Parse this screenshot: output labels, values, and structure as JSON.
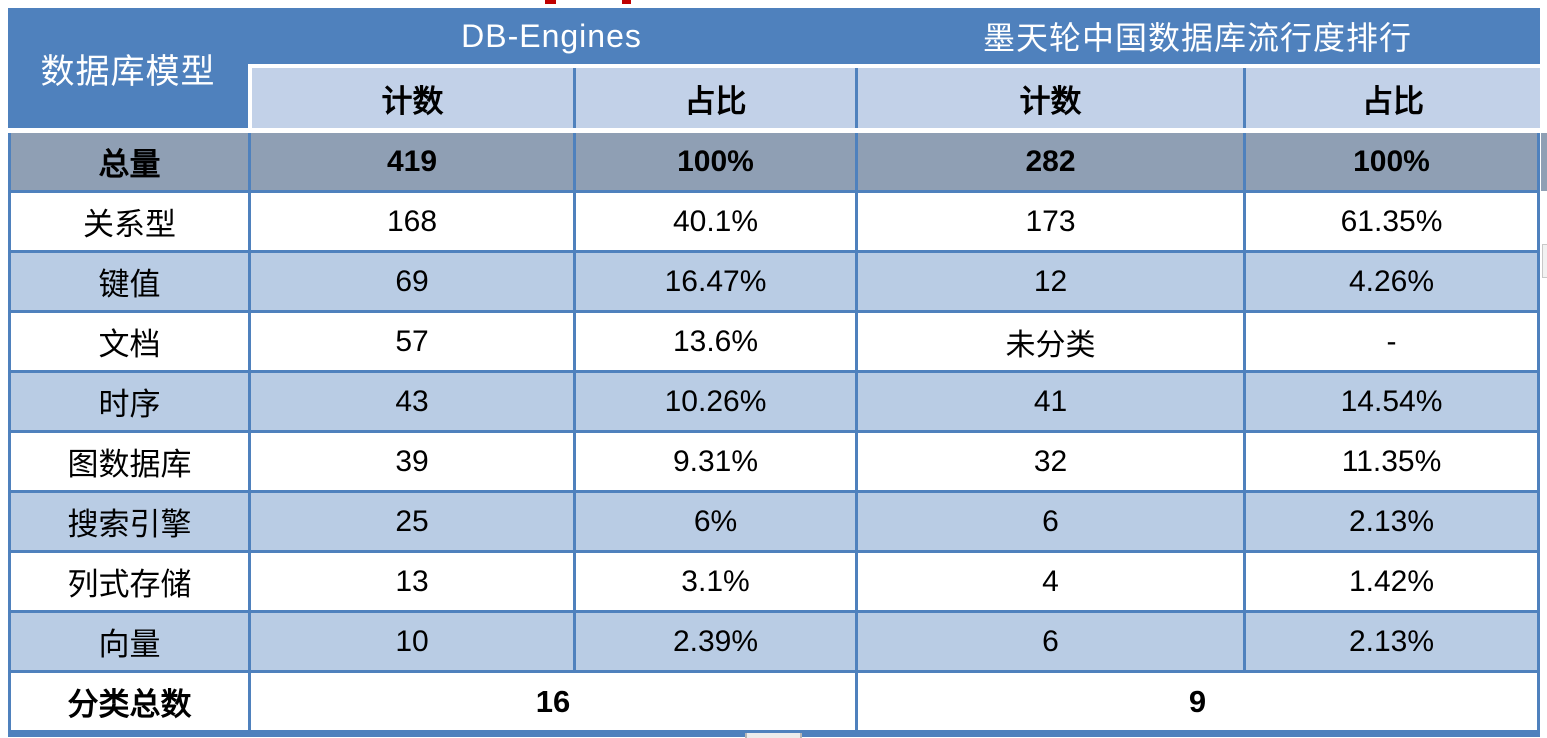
{
  "colors": {
    "header_blue": "#4f81bd",
    "subheader_blue": "#c2d1e8",
    "row_light_blue": "#b9cce4",
    "total_row_gray": "#8f9fb4",
    "grid_border_blue": "#4f81bd",
    "text_black": "#000000",
    "header_text_white": "#ffffff",
    "artifact_red": "#c00000"
  },
  "table": {
    "corner_header": "数据库模型",
    "groups": [
      {
        "label": "DB-Engines"
      },
      {
        "label": "墨天轮中国数据库流行度排行"
      }
    ],
    "sub_headers": [
      "计数",
      "占比",
      "计数",
      "占比"
    ],
    "rows": [
      {
        "label": "总量",
        "cells": [
          "419",
          "100%",
          "282",
          "100%"
        ]
      },
      {
        "label": "关系型",
        "cells": [
          "168",
          "40.1%",
          "173",
          "61.35%"
        ]
      },
      {
        "label": "键值",
        "cells": [
          "69",
          "16.47%",
          "12",
          "4.26%"
        ]
      },
      {
        "label": "文档",
        "cells": [
          "57",
          "13.6%",
          "未分类",
          "-"
        ]
      },
      {
        "label": "时序",
        "cells": [
          "43",
          "10.26%",
          "41",
          "14.54%"
        ]
      },
      {
        "label": "图数据库",
        "cells": [
          "39",
          "9.31%",
          "32",
          "11.35%"
        ]
      },
      {
        "label": "搜索引擎",
        "cells": [
          "25",
          "6%",
          "6",
          "2.13%"
        ]
      },
      {
        "label": "列式存储",
        "cells": [
          "13",
          "3.1%",
          "4",
          "1.42%"
        ]
      },
      {
        "label": "向量",
        "cells": [
          "10",
          "2.39%",
          "6",
          "2.13%"
        ]
      }
    ],
    "footer": {
      "label": "分类总数",
      "totals": [
        "16",
        "9"
      ]
    }
  },
  "chart_data": {
    "type": "table",
    "title": "",
    "columns": [
      "数据库模型",
      "DB-Engines 计数",
      "DB-Engines 占比",
      "墨天轮中国数据库流行度排行 计数",
      "墨天轮中国数据库流行度排行 占比"
    ],
    "rows": [
      [
        "总量",
        "419",
        "100%",
        "282",
        "100%"
      ],
      [
        "关系型",
        "168",
        "40.1%",
        "173",
        "61.35%"
      ],
      [
        "键值",
        "69",
        "16.47%",
        "12",
        "4.26%"
      ],
      [
        "文档",
        "57",
        "13.6%",
        "未分类",
        "-"
      ],
      [
        "时序",
        "43",
        "10.26%",
        "41",
        "14.54%"
      ],
      [
        "图数据库",
        "39",
        "9.31%",
        "32",
        "11.35%"
      ],
      [
        "搜索引擎",
        "25",
        "6%",
        "6",
        "2.13%"
      ],
      [
        "列式存储",
        "13",
        "3.1%",
        "4",
        "1.42%"
      ],
      [
        "向量",
        "10",
        "2.39%",
        "6",
        "2.13%"
      ],
      [
        "分类总数",
        "16",
        "16",
        "9",
        "9"
      ]
    ]
  }
}
